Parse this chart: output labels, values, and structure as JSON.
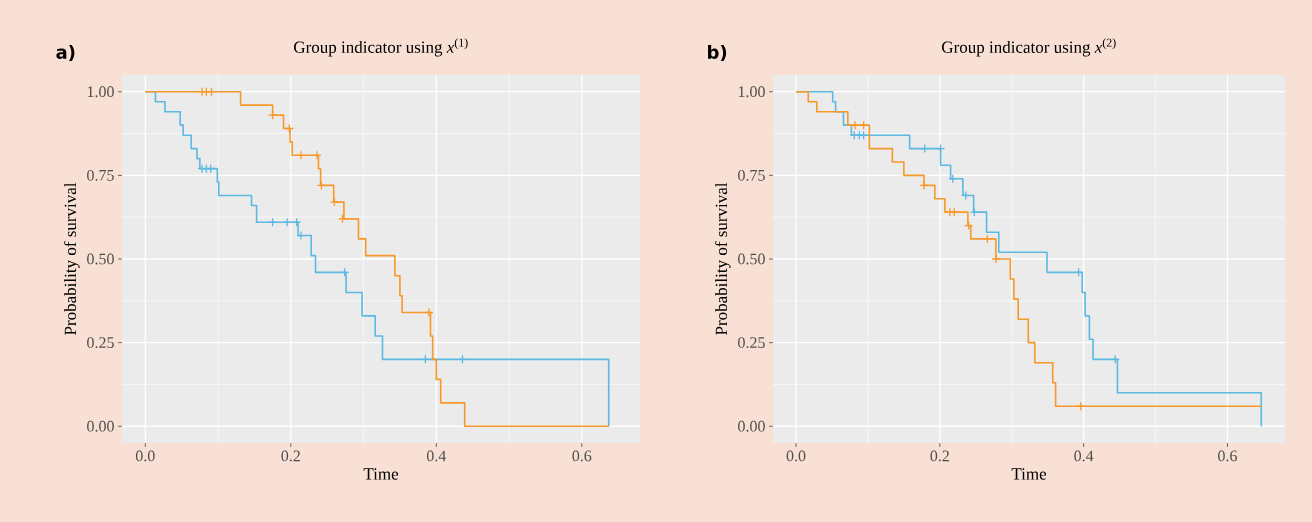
{
  "chart_data": [
    {
      "type": "step",
      "title": "Group indicator using *x*$^{(1)}$",
      "xlabel": "Time",
      "ylabel": "Probability of survival",
      "annotations": [
        "a)"
      ],
      "xlim": [
        -0.032,
        0.68
      ],
      "ylim": [
        -0.05,
        1.05
      ],
      "xticks": [
        {
          "value": 0,
          "label": "0.0"
        },
        {
          "value": 0.2,
          "label": "0.2"
        },
        {
          "value": 0.4,
          "label": "0.4"
        },
        {
          "value": 0.6,
          "label": "0.6"
        }
      ],
      "yticks": [
        {
          "value": 0,
          "label": "0.00"
        },
        {
          "value": 0.25,
          "label": "0.25"
        },
        {
          "value": 0.5,
          "label": "0.50"
        },
        {
          "value": 0.75,
          "label": "0.75"
        },
        {
          "value": 1,
          "label": "1.00"
        }
      ],
      "grid": true,
      "series": [
        {
          "color": "#5bb9e2",
          "x": [
            0,
            0.014,
            0.027,
            0.048,
            0.052,
            0.063,
            0.071,
            0.075,
            0.099,
            0.101,
            0.146,
            0.153,
            0.21,
            0.228,
            0.234,
            0.276,
            0.298,
            0.316,
            0.326,
            0.637
          ],
          "values": [
            1,
            0.97,
            0.94,
            0.9,
            0.87,
            0.83,
            0.8,
            0.77,
            0.73,
            0.69,
            0.66,
            0.61,
            0.57,
            0.51,
            0.46,
            0.4,
            0.33,
            0.27,
            0.2,
            0
          ]
        },
        {
          "color": "#f7982a",
          "x": [
            0,
            0.131,
            0.175,
            0.19,
            0.199,
            0.202,
            0.238,
            0.241,
            0.259,
            0.273,
            0.293,
            0.303,
            0.343,
            0.35,
            0.353,
            0.392,
            0.395,
            0.4,
            0.406,
            0.439,
            0.637
          ],
          "values": [
            1,
            0.96,
            0.93,
            0.89,
            0.85,
            0.81,
            0.77,
            0.72,
            0.67,
            0.62,
            0.56,
            0.51,
            0.45,
            0.39,
            0.34,
            0.27,
            0.2,
            0.14,
            0.07,
            0,
            0
          ]
        },
        {
          "type": "scatter",
          "marker": "cross",
          "color": "#5bb9e2",
          "x": [
            0.078,
            0.084,
            0.09,
            0.175,
            0.195,
            0.208,
            0.214,
            0.274,
            0.385,
            0.436
          ],
          "values": [
            0.77,
            0.77,
            0.77,
            0.61,
            0.61,
            0.61,
            0.57,
            0.46,
            0.2,
            0.2
          ]
        },
        {
          "type": "scatter",
          "marker": "cross",
          "color": "#f7982a",
          "x": [
            0.078,
            0.084,
            0.091,
            0.175,
            0.198,
            0.214,
            0.236,
            0.242,
            0.26,
            0.271,
            0.39
          ],
          "values": [
            1,
            1,
            1,
            0.93,
            0.89,
            0.81,
            0.81,
            0.72,
            0.67,
            0.62,
            0.34
          ]
        }
      ]
    },
    {
      "type": "step",
      "title": "Group indicator using *x*$^{(2)}$",
      "xlabel": "Time",
      "ylabel": "Probability of survival",
      "annotations": [
        "b)"
      ],
      "xlim": [
        -0.032,
        0.68
      ],
      "ylim": [
        -0.05,
        1.05
      ],
      "xticks": [
        {
          "value": 0,
          "label": "0.0"
        },
        {
          "value": 0.2,
          "label": "0.2"
        },
        {
          "value": 0.4,
          "label": "0.4"
        },
        {
          "value": 0.6,
          "label": "0.6"
        }
      ],
      "yticks": [
        {
          "value": 0,
          "label": "0.00"
        },
        {
          "value": 0.25,
          "label": "0.25"
        },
        {
          "value": 0.5,
          "label": "0.50"
        },
        {
          "value": 0.75,
          "label": "0.75"
        },
        {
          "value": 1,
          "label": "1.00"
        }
      ],
      "grid": true,
      "series": [
        {
          "color": "#5bb9e2",
          "x": [
            0,
            0.051,
            0.055,
            0.066,
            0.077,
            0.158,
            0.201,
            0.215,
            0.232,
            0.247,
            0.265,
            0.282,
            0.349,
            0.398,
            0.402,
            0.408,
            0.413,
            0.447,
            0.647
          ],
          "values": [
            1,
            0.97,
            0.94,
            0.9,
            0.87,
            0.83,
            0.78,
            0.74,
            0.69,
            0.64,
            0.58,
            0.52,
            0.46,
            0.4,
            0.33,
            0.26,
            0.2,
            0.1,
            0
          ]
        },
        {
          "color": "#f7982a",
          "x": [
            0,
            0.017,
            0.029,
            0.072,
            0.102,
            0.134,
            0.15,
            0.178,
            0.193,
            0.207,
            0.239,
            0.243,
            0.278,
            0.298,
            0.303,
            0.309,
            0.323,
            0.332,
            0.357,
            0.361,
            0.647
          ],
          "values": [
            1,
            0.97,
            0.94,
            0.9,
            0.83,
            0.79,
            0.75,
            0.72,
            0.68,
            0.64,
            0.6,
            0.56,
            0.5,
            0.44,
            0.38,
            0.32,
            0.25,
            0.19,
            0.13,
            0.06,
            0.06
          ]
        },
        {
          "type": "scatter",
          "marker": "cross",
          "color": "#5bb9e2",
          "x": [
            0.081,
            0.088,
            0.094,
            0.179,
            0.201,
            0.218,
            0.236,
            0.248,
            0.393,
            0.444
          ],
          "values": [
            0.87,
            0.87,
            0.87,
            0.83,
            0.83,
            0.74,
            0.69,
            0.64,
            0.46,
            0.2
          ]
        },
        {
          "type": "scatter",
          "marker": "cross",
          "color": "#f7982a",
          "x": [
            0.082,
            0.094,
            0.178,
            0.214,
            0.22,
            0.24,
            0.266,
            0.278,
            0.396
          ],
          "values": [
            0.9,
            0.9,
            0.72,
            0.64,
            0.64,
            0.6,
            0.56,
            0.5,
            0.06
          ]
        }
      ]
    }
  ]
}
